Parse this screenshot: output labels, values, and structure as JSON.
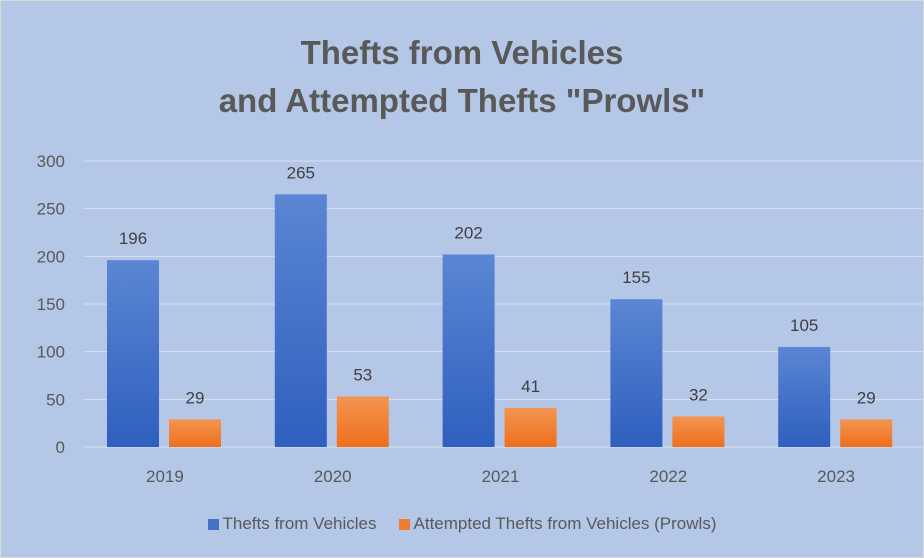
{
  "chart_data": {
    "type": "bar",
    "title_lines": [
      "Thefts from Vehicles",
      "and Attempted Thefts \"Prowls\""
    ],
    "categories": [
      "2019",
      "2020",
      "2021",
      "2022",
      "2023"
    ],
    "series": [
      {
        "name": "Thefts from Vehicles",
        "values": [
          196,
          265,
          202,
          155,
          105
        ],
        "color": "#4472c4",
        "color_top": "#5b86d3",
        "color_bottom": "#2f5fbf"
      },
      {
        "name": "Attempted Thefts from Vehicles (Prowls)",
        "values": [
          29,
          53,
          41,
          32,
          29
        ],
        "color": "#ed7d31",
        "color_top": "#f39550",
        "color_bottom": "#ee6f1c"
      }
    ],
    "xlabel": "",
    "ylabel": "",
    "ylim": [
      0,
      300
    ],
    "y_ticks": [
      0,
      50,
      100,
      150,
      200,
      250,
      300
    ],
    "gridlines": true,
    "data_labels": true,
    "legend_position": "bottom",
    "background_color": "#b4c7e7",
    "gridline_color": "#d9e1f2"
  }
}
